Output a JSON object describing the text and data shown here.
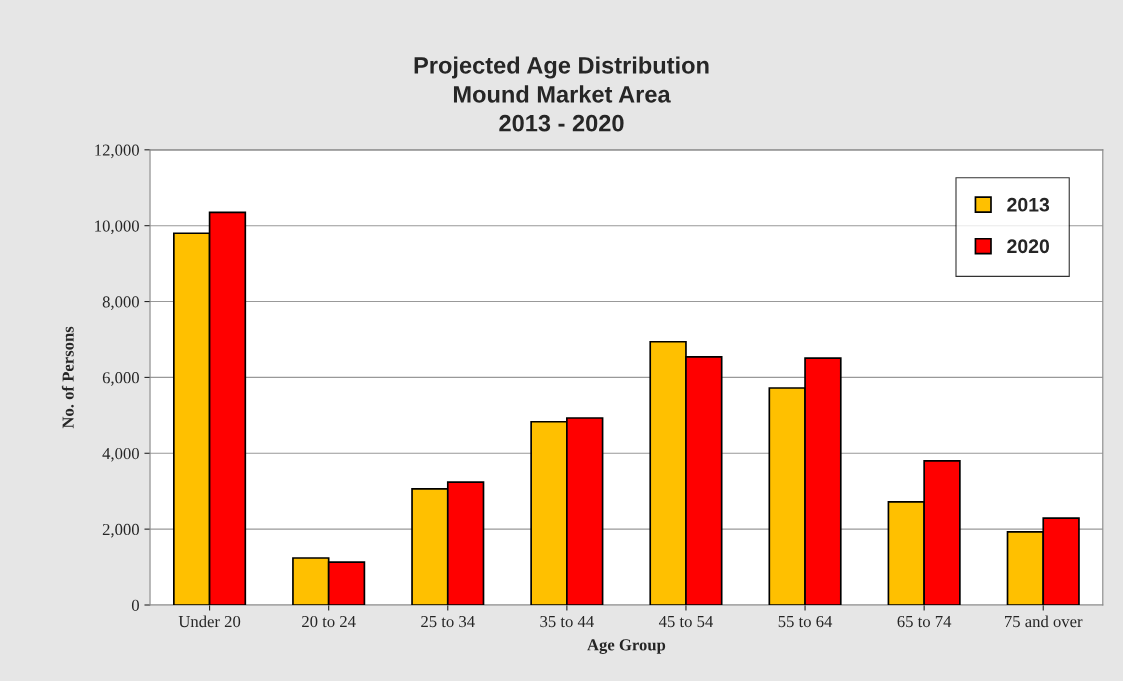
{
  "chart_data": {
    "type": "bar",
    "title": "Projected Age Distribution\nMound Market Area\n2013 - 2020",
    "xlabel": "Age Group",
    "ylabel": "No. of Persons",
    "categories": [
      "Under 20",
      "20 to 24",
      "25 to 34",
      "35 to 44",
      "45 to 54",
      "55 to 64",
      "65 to 74",
      "75 and over"
    ],
    "series": [
      {
        "name": "2013",
        "color": "#ffc000",
        "values": [
          9800,
          1240,
          3060,
          4830,
          6940,
          5720,
          2720,
          1930
        ]
      },
      {
        "name": "2020",
        "color": "#ff0000",
        "values": [
          10350,
          1130,
          3240,
          4930,
          6540,
          6510,
          3800,
          2290
        ]
      }
    ],
    "ylim": [
      0,
      12000
    ],
    "yticks": [
      {
        "value": 0,
        "label": "0"
      },
      {
        "value": 2000,
        "label": "2,000"
      },
      {
        "value": 4000,
        "label": "4,000"
      },
      {
        "value": 6000,
        "label": "6,000"
      },
      {
        "value": 8000,
        "label": "8,000"
      },
      {
        "value": 10000,
        "label": "10,000"
      },
      {
        "value": 12000,
        "label": "12,000"
      }
    ],
    "grid": "y",
    "legend": "top right"
  }
}
